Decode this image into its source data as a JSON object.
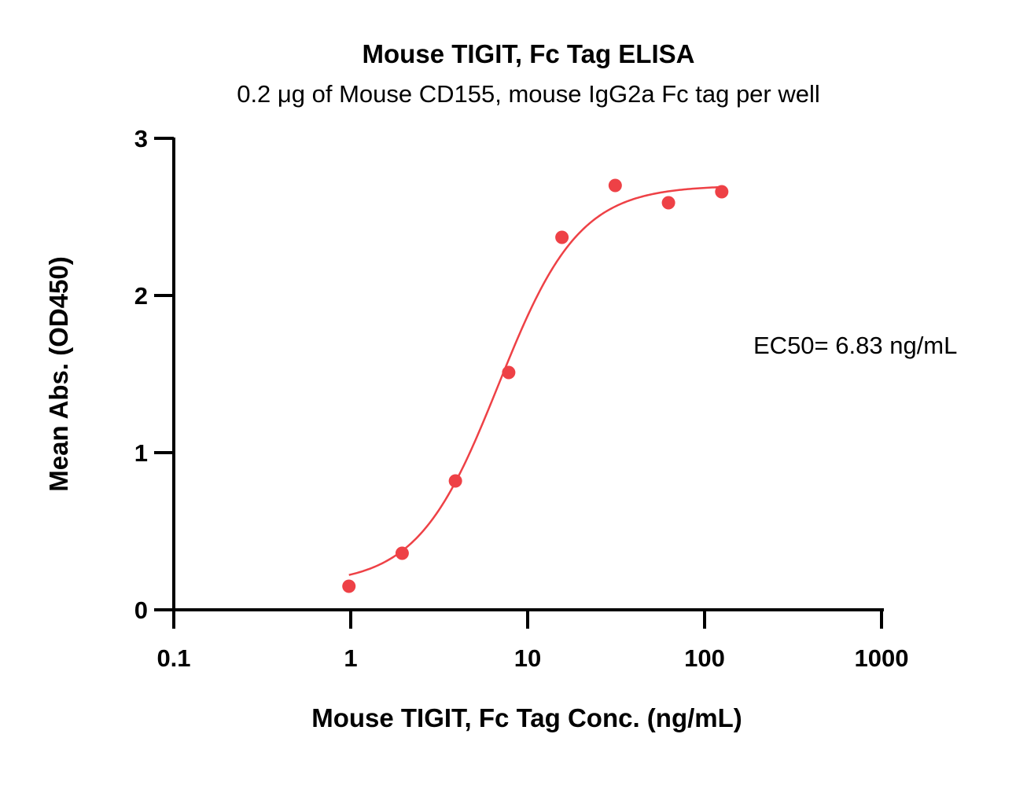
{
  "chart_data": {
    "type": "scatter",
    "title": "Mouse TIGIT, Fc Tag ELISA",
    "subtitle": "0.2 μg of Mouse CD155, mouse IgG2a Fc tag per well",
    "xlabel": "Mouse TIGIT, Fc Tag Conc. (ng/mL)",
    "ylabel": "Mean Abs. (OD450)",
    "x_scale": "log",
    "xlim": [
      0.1,
      1000
    ],
    "ylim": [
      0,
      3
    ],
    "x_ticks": [
      0.1,
      1,
      10,
      100,
      1000
    ],
    "x_tick_labels": [
      "0.1",
      "1",
      "10",
      "100",
      "1000"
    ],
    "y_ticks": [
      0,
      1,
      2,
      3
    ],
    "y_tick_labels": [
      "0",
      "1",
      "2",
      "3"
    ],
    "grid": false,
    "color": "#ee4146",
    "series": [
      {
        "x": [
          0.977,
          1.953,
          3.906,
          7.813,
          15.625,
          31.25,
          62.5,
          125
        ],
        "y": [
          0.15,
          0.36,
          0.82,
          1.51,
          2.37,
          2.7,
          2.59,
          2.66
        ]
      }
    ],
    "fit": {
      "model": "4PL",
      "bottom": 0.16,
      "top": 2.7,
      "ec50": 6.83,
      "hill": 1.9,
      "x_range": [
        0.977,
        125
      ]
    },
    "annotation": "EC50= 6.83 ng/mL"
  }
}
